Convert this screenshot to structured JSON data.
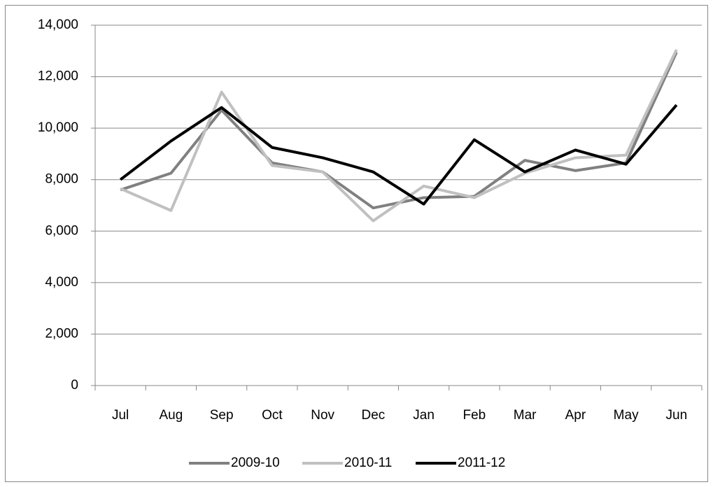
{
  "chart_data": {
    "type": "line",
    "categories": [
      "Jul",
      "Aug",
      "Sep",
      "Oct",
      "Nov",
      "Dec",
      "Jan",
      "Feb",
      "Mar",
      "Apr",
      "May",
      "Jun"
    ],
    "series": [
      {
        "name": "2009-10",
        "color": "#808080",
        "values": [
          7600,
          8250,
          10700,
          8650,
          8300,
          6900,
          7300,
          7350,
          8750,
          8350,
          8650,
          12950
        ]
      },
      {
        "name": "2010-11",
        "color": "#c0c0c0",
        "values": [
          7650,
          6800,
          11400,
          8550,
          8300,
          6400,
          7750,
          7300,
          8250,
          8850,
          8950,
          13050
        ]
      },
      {
        "name": "2011-12",
        "color": "#000000",
        "values": [
          8000,
          9500,
          10800,
          9250,
          8850,
          8300,
          7050,
          9550,
          8300,
          9150,
          8600,
          10900
        ]
      }
    ],
    "ylim": [
      0,
      14000
    ],
    "yticks": [
      0,
      {
        "value": 2000,
        "label": "2,000"
      },
      {
        "value": 4000,
        "label": "4,000"
      },
      {
        "value": 6000,
        "label": "6,000"
      },
      {
        "value": 8000,
        "label": "8,000"
      },
      {
        "value": 10000,
        "label": "10,000"
      },
      {
        "value": 12000,
        "label": "12,000"
      },
      {
        "value": 14000,
        "label": "14,000"
      }
    ],
    "grid": true,
    "legend": "bottom"
  }
}
